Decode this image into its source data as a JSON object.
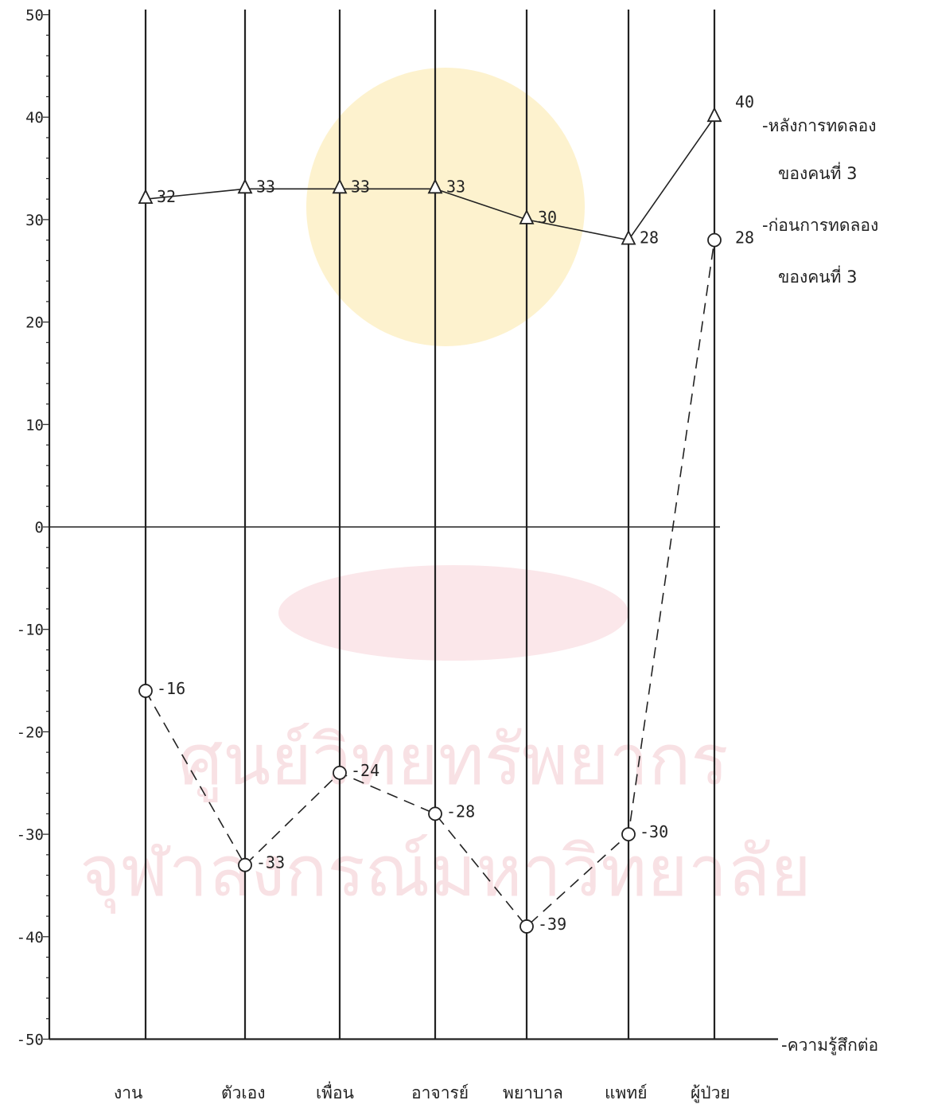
{
  "chart_data": {
    "type": "line",
    "categories": [
      "งาน",
      "ตัวเอง",
      "เพื่อน",
      "อาจารย์",
      "พยาบาล",
      "แพทย์",
      "ผู้ป่วย"
    ],
    "ylim": [
      -50,
      50
    ],
    "yticks": [
      50,
      40,
      30,
      20,
      10,
      0,
      -10,
      -20,
      -30,
      -40,
      -50
    ],
    "x_axis_end_label": "-ความรู้สึกต่อ",
    "grid": "vertical lines at each category",
    "legend_position": "right",
    "series": [
      {
        "name": "-หลังการทดลอง ของคนที่ 3",
        "legend_lines": [
          "-หลังการทดลอง",
          "ของคนที่ 3"
        ],
        "marker": "triangle",
        "line_style": "solid",
        "values": [
          32,
          33,
          33,
          33,
          30,
          28,
          40
        ],
        "labels": [
          "32",
          "33",
          "33",
          "33",
          "30",
          "28",
          "40"
        ]
      },
      {
        "name": "-ก่อนการทดลอง ของคนที่ 3",
        "legend_lines": [
          "-ก่อนการทดลอง",
          "ของคนที่ 3"
        ],
        "marker": "circle",
        "line_style": "dashed",
        "values": [
          -16,
          -33,
          -24,
          -28,
          -39,
          -30,
          28
        ],
        "labels": [
          "-16",
          "-33",
          "-24",
          "-28",
          "-39",
          "-30",
          "28"
        ]
      }
    ],
    "color": "#222222"
  },
  "watermark": {
    "line1": "ศูนย์วิทยทรัพยากร",
    "line2": "จุฬาลงกรณ์มหาวิทยาลัย"
  }
}
